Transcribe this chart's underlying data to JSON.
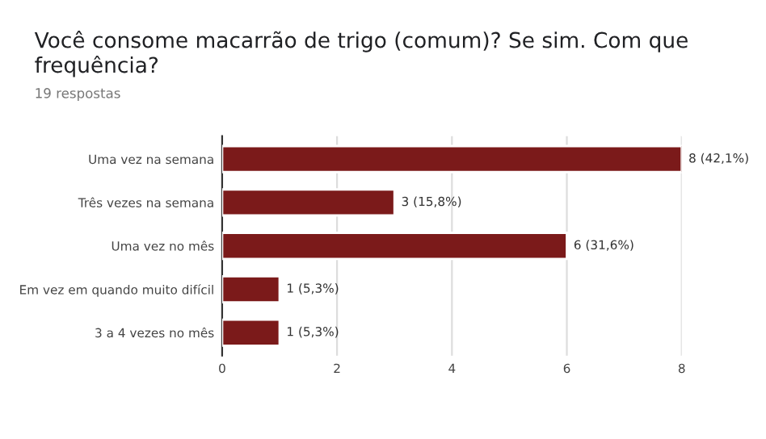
{
  "chart_data": {
    "type": "bar",
    "orientation": "horizontal",
    "title": "Você consome macarrão de trigo (comum)? Se sim. Com que frequência?",
    "subtitle": "19 respostas",
    "categories": [
      "Uma vez na semana",
      "Três vezes na semana",
      "Uma vez no mês",
      "Em vez em quando muito difícil",
      "3 a 4 vezes no mês"
    ],
    "values": [
      8,
      3,
      6,
      1,
      1
    ],
    "value_labels": [
      "8 (42,1%)",
      "3 (15,8%)",
      "6 (31,6%)",
      "1 (5,3%)",
      "1 (5,3%)"
    ],
    "color": "#7b1a1a",
    "xlim": [
      0,
      8
    ],
    "xticks": [
      0,
      2,
      4,
      6,
      8
    ],
    "grid": "x"
  }
}
